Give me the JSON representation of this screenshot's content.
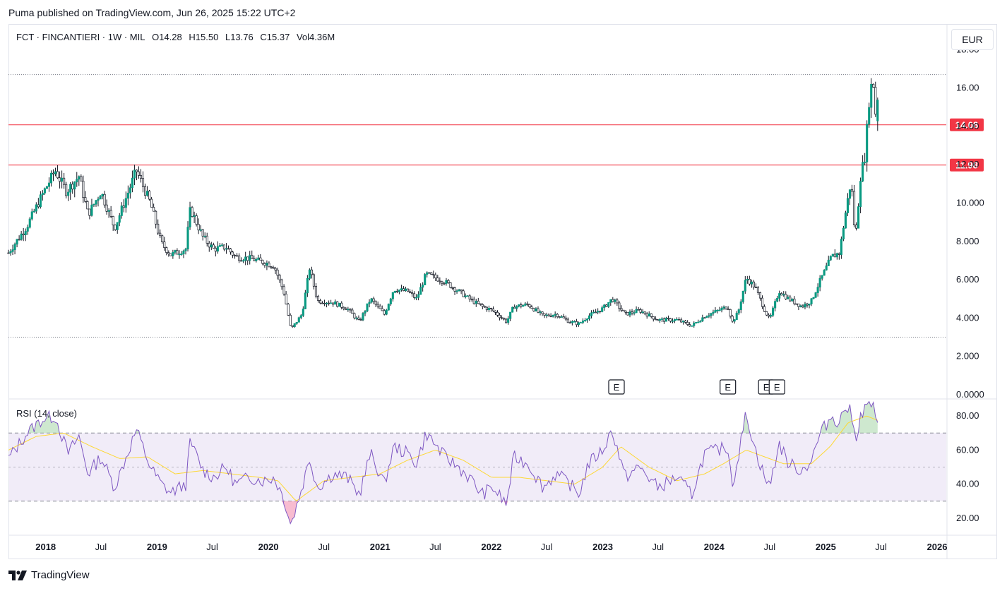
{
  "header": {
    "published": "Puma published on TradingView.com, Jun 26, 2025 15:22 UTC+2"
  },
  "legend": {
    "symbol": "FCT · FINCANTIERI · 1W · MIL",
    "open_label": "O",
    "open": "14.28",
    "high_label": "H",
    "high": "15.50",
    "low_label": "L",
    "low": "13.76",
    "close_label": "C",
    "close": "15.37",
    "vol_label": "Vol",
    "vol": "4.36M"
  },
  "currency": "EUR",
  "footer": {
    "brand": "TradingView"
  },
  "colors": {
    "up": "#089981",
    "down": "#131722",
    "level": "#f23645",
    "rsi": "#7e57c2",
    "rsi_ma": "#fdd835",
    "band": "#ede7f6"
  },
  "chart_data": [
    {
      "type": "candlestick",
      "title": "",
      "y_ticks": [
        "18.00",
        "16.00",
        "14.00",
        "12.00",
        "10.000",
        "8.000",
        "6.000",
        "4.000",
        "2.000",
        "0.0000"
      ],
      "y_tick_values": [
        18,
        16,
        14,
        12,
        10,
        8,
        6,
        4,
        2,
        0
      ],
      "ylim": [
        0,
        18.6
      ],
      "x_ticks": [
        "2018",
        "Jul",
        "2019",
        "Jul",
        "2020",
        "Jul",
        "2021",
        "Jul",
        "2022",
        "Jul",
        "2023",
        "Jul",
        "2024",
        "Jul",
        "2025",
        "Jul",
        "2026"
      ],
      "x_tick_dates": [
        "2018-01-01",
        "2018-07-01",
        "2019-01-01",
        "2019-07-01",
        "2020-01-01",
        "2020-07-01",
        "2021-01-01",
        "2021-07-01",
        "2022-01-01",
        "2022-07-01",
        "2023-01-01",
        "2023-07-01",
        "2024-01-01",
        "2024-07-01",
        "2025-01-01",
        "2025-07-01",
        "2026-01-01"
      ],
      "bold_ticks": [
        "2018",
        "2019",
        "2020",
        "2021",
        "2022",
        "2023",
        "2024",
        "2025",
        "2026"
      ],
      "xlim": [
        "2017-09-01",
        "2026-01-31"
      ],
      "horizontal_levels": [
        {
          "value": 14.08,
          "label": "14.08",
          "style": "solid"
        },
        {
          "value": 11.98,
          "label": "11.98",
          "style": "solid"
        }
      ],
      "dotted_levels": [
        16.7,
        3.0
      ],
      "earnings_markers": [
        {
          "date": "2023-02-15",
          "label": "E"
        },
        {
          "date": "2024-02-15",
          "label": "E"
        },
        {
          "date": "2024-06-20",
          "label": "E"
        },
        {
          "date": "2024-07-25",
          "label": "E"
        }
      ],
      "series_anchor": [
        [
          "2017-09-01",
          7.4
        ],
        [
          "2017-11-01",
          8.8
        ],
        [
          "2017-12-20",
          10.4
        ],
        [
          "2018-02-01",
          11.7
        ],
        [
          "2018-03-10",
          10.6
        ],
        [
          "2018-04-20",
          11.4
        ],
        [
          "2018-05-20",
          9.4
        ],
        [
          "2018-07-01",
          10.6
        ],
        [
          "2018-08-15",
          8.7
        ],
        [
          "2018-09-20",
          10.2
        ],
        [
          "2018-10-25",
          11.7
        ],
        [
          "2018-12-10",
          10.0
        ],
        [
          "2019-01-15",
          7.9
        ],
        [
          "2019-02-15",
          7.3
        ],
        [
          "2019-04-05",
          7.6
        ],
        [
          "2019-04-20",
          9.7
        ],
        [
          "2019-06-01",
          8.2
        ],
        [
          "2019-07-05",
          7.6
        ],
        [
          "2019-08-15",
          7.7
        ],
        [
          "2019-09-15",
          7.2
        ],
        [
          "2019-11-01",
          7.1
        ],
        [
          "2019-12-20",
          6.9
        ],
        [
          "2020-01-20",
          6.7
        ],
        [
          "2020-02-20",
          5.4
        ],
        [
          "2020-03-15",
          3.4
        ],
        [
          "2020-04-20",
          4.2
        ],
        [
          "2020-05-15",
          6.6
        ],
        [
          "2020-06-10",
          4.9
        ],
        [
          "2020-08-01",
          4.8
        ],
        [
          "2020-09-15",
          4.5
        ],
        [
          "2020-10-25",
          3.8
        ],
        [
          "2020-12-01",
          5.0
        ],
        [
          "2021-01-15",
          4.2
        ],
        [
          "2021-02-15",
          5.5
        ],
        [
          "2021-04-01",
          5.4
        ],
        [
          "2021-05-01",
          5.0
        ],
        [
          "2021-06-01",
          6.3
        ],
        [
          "2021-08-01",
          5.9
        ],
        [
          "2021-09-15",
          5.4
        ],
        [
          "2021-10-20",
          5.0
        ],
        [
          "2021-12-01",
          4.6
        ],
        [
          "2022-01-05",
          4.4
        ],
        [
          "2022-02-20",
          3.8
        ],
        [
          "2022-03-15",
          4.6
        ],
        [
          "2022-05-01",
          4.7
        ],
        [
          "2022-06-20",
          4.1
        ],
        [
          "2022-08-01",
          4.2
        ],
        [
          "2022-09-15",
          3.8
        ],
        [
          "2022-10-15",
          3.7
        ],
        [
          "2022-11-15",
          4.1
        ],
        [
          "2023-01-01",
          4.5
        ],
        [
          "2023-02-01",
          5.0
        ],
        [
          "2023-03-15",
          4.2
        ],
        [
          "2023-05-01",
          4.4
        ],
        [
          "2023-07-01",
          3.9
        ],
        [
          "2023-09-01",
          3.9
        ],
        [
          "2023-10-20",
          3.6
        ],
        [
          "2023-12-01",
          4.1
        ],
        [
          "2024-01-15",
          4.4
        ],
        [
          "2024-02-15",
          4.6
        ],
        [
          "2024-03-01",
          3.8
        ],
        [
          "2024-03-20",
          4.3
        ],
        [
          "2024-04-15",
          6.1
        ],
        [
          "2024-05-15",
          5.6
        ],
        [
          "2024-06-15",
          4.4
        ],
        [
          "2024-07-01",
          3.9
        ],
        [
          "2024-08-01",
          5.4
        ],
        [
          "2024-09-01",
          5.0
        ],
        [
          "2024-10-15",
          4.6
        ],
        [
          "2024-11-15",
          4.9
        ],
        [
          "2024-12-15",
          6.0
        ],
        [
          "2025-01-20",
          7.2
        ],
        [
          "2025-02-15",
          7.4
        ],
        [
          "2025-03-05",
          9.3
        ],
        [
          "2025-03-25",
          11.2
        ],
        [
          "2025-04-08",
          8.0
        ],
        [
          "2025-04-25",
          11.4
        ],
        [
          "2025-05-10",
          12.5
        ],
        [
          "2025-05-25",
          15.8
        ],
        [
          "2025-06-05",
          16.4
        ],
        [
          "2025-06-15",
          14.3
        ],
        [
          "2025-06-26",
          15.37
        ]
      ],
      "last_ohlc": {
        "open": 14.28,
        "high": 15.5,
        "low": 13.76,
        "close": 15.37
      }
    },
    {
      "type": "line",
      "title": "RSI (14, close)",
      "y_ticks": [
        "80.00",
        "60.00",
        "40.00",
        "20.00"
      ],
      "y_tick_values": [
        80,
        60,
        40,
        20
      ],
      "ylim": [
        10,
        90
      ],
      "band": [
        30,
        70
      ],
      "midline": 50,
      "series": [
        {
          "anchor": [
            [
              "2017-09-01",
              55
            ],
            [
              "2017-11-01",
              70
            ],
            [
              "2017-12-20",
              78
            ],
            [
              "2018-02-01",
              80
            ],
            [
              "2018-03-15",
              58
            ],
            [
              "2018-04-20",
              68
            ],
            [
              "2018-05-20",
              46
            ],
            [
              "2018-07-01",
              56
            ],
            [
              "2018-08-15",
              38
            ],
            [
              "2018-09-20",
              55
            ],
            [
              "2018-10-25",
              72
            ],
            [
              "2018-12-10",
              50
            ],
            [
              "2019-01-15",
              40
            ],
            [
              "2019-02-15",
              35
            ],
            [
              "2019-04-05",
              40
            ],
            [
              "2019-04-20",
              65
            ],
            [
              "2019-06-01",
              48
            ],
            [
              "2019-07-05",
              44
            ],
            [
              "2019-08-15",
              50
            ],
            [
              "2019-09-15",
              40
            ],
            [
              "2019-11-01",
              44
            ],
            [
              "2019-12-20",
              42
            ],
            [
              "2020-01-20",
              44
            ],
            [
              "2020-02-20",
              32
            ],
            [
              "2020-03-15",
              16
            ],
            [
              "2020-04-20",
              38
            ],
            [
              "2020-05-15",
              55
            ],
            [
              "2020-06-10",
              38
            ],
            [
              "2020-08-01",
              46
            ],
            [
              "2020-09-15",
              44
            ],
            [
              "2020-10-25",
              34
            ],
            [
              "2020-12-01",
              58
            ],
            [
              "2021-01-15",
              40
            ],
            [
              "2021-02-15",
              62
            ],
            [
              "2021-04-01",
              58
            ],
            [
              "2021-05-01",
              52
            ],
            [
              "2021-06-01",
              70
            ],
            [
              "2021-08-01",
              56
            ],
            [
              "2021-09-15",
              50
            ],
            [
              "2021-10-20",
              44
            ],
            [
              "2021-12-01",
              34
            ],
            [
              "2022-01-05",
              38
            ],
            [
              "2022-02-20",
              28
            ],
            [
              "2022-03-15",
              56
            ],
            [
              "2022-05-01",
              52
            ],
            [
              "2022-06-20",
              38
            ],
            [
              "2022-08-01",
              46
            ],
            [
              "2022-09-15",
              40
            ],
            [
              "2022-10-15",
              34
            ],
            [
              "2022-11-15",
              52
            ],
            [
              "2023-01-01",
              60
            ],
            [
              "2023-02-01",
              72
            ],
            [
              "2023-03-15",
              44
            ],
            [
              "2023-05-01",
              50
            ],
            [
              "2023-07-01",
              38
            ],
            [
              "2023-09-01",
              44
            ],
            [
              "2023-10-20",
              34
            ],
            [
              "2023-12-01",
              58
            ],
            [
              "2024-01-15",
              60
            ],
            [
              "2024-02-15",
              62
            ],
            [
              "2024-03-01",
              40
            ],
            [
              "2024-03-20",
              56
            ],
            [
              "2024-04-15",
              82
            ],
            [
              "2024-05-15",
              60
            ],
            [
              "2024-06-15",
              44
            ],
            [
              "2024-07-01",
              38
            ],
            [
              "2024-08-01",
              64
            ],
            [
              "2024-09-01",
              52
            ],
            [
              "2024-10-15",
              48
            ],
            [
              "2024-11-15",
              54
            ],
            [
              "2024-12-15",
              70
            ],
            [
              "2025-01-20",
              80
            ],
            [
              "2025-02-15",
              76
            ],
            [
              "2025-03-05",
              86
            ],
            [
              "2025-03-25",
              82
            ],
            [
              "2025-04-08",
              66
            ],
            [
              "2025-04-25",
              80
            ],
            [
              "2025-05-10",
              84
            ],
            [
              "2025-05-25",
              88
            ],
            [
              "2025-06-05",
              86
            ],
            [
              "2025-06-15",
              74
            ],
            [
              "2025-06-26",
              77
            ]
          ]
        },
        {
          "anchor": [
            [
              "2017-09-01",
              60
            ],
            [
              "2017-12-01",
              68
            ],
            [
              "2018-03-01",
              70
            ],
            [
              "2018-06-01",
              62
            ],
            [
              "2018-09-01",
              55
            ],
            [
              "2018-12-01",
              56
            ],
            [
              "2019-03-01",
              46
            ],
            [
              "2019-06-01",
              48
            ],
            [
              "2019-09-01",
              46
            ],
            [
              "2019-12-01",
              44
            ],
            [
              "2020-02-01",
              42
            ],
            [
              "2020-04-01",
              30
            ],
            [
              "2020-07-01",
              42
            ],
            [
              "2020-10-01",
              44
            ],
            [
              "2021-01-01",
              46
            ],
            [
              "2021-04-01",
              54
            ],
            [
              "2021-07-01",
              60
            ],
            [
              "2021-10-01",
              54
            ],
            [
              "2022-01-01",
              44
            ],
            [
              "2022-04-01",
              44
            ],
            [
              "2022-07-01",
              42
            ],
            [
              "2022-10-01",
              40
            ],
            [
              "2023-01-01",
              50
            ],
            [
              "2023-03-01",
              62
            ],
            [
              "2023-06-01",
              50
            ],
            [
              "2023-09-01",
              42
            ],
            [
              "2023-12-01",
              46
            ],
            [
              "2024-02-01",
              52
            ],
            [
              "2024-04-15",
              60
            ],
            [
              "2024-06-15",
              56
            ],
            [
              "2024-08-15",
              52
            ],
            [
              "2024-11-15",
              52
            ],
            [
              "2025-01-15",
              62
            ],
            [
              "2025-03-15",
              76
            ],
            [
              "2025-05-15",
              80
            ],
            [
              "2025-06-26",
              77
            ]
          ]
        }
      ]
    }
  ]
}
